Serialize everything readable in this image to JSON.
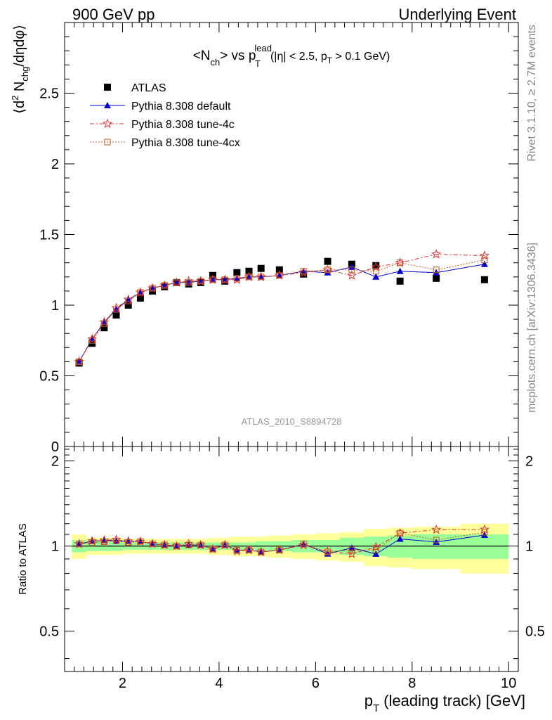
{
  "header": {
    "left": "900 GeV pp",
    "right": "Underlying Event"
  },
  "side_text": {
    "rivet": "Rivet 3.1.10, ≥ 2.7M events",
    "mcplots": "mcplots.cern.ch [arXiv:1306.3436]"
  },
  "watermark": "ATLAS_2010_S8894728",
  "chart_data": [
    {
      "type": "scatter",
      "title": "<Nch> vs pT lead (|η| < 2.5, pT > 0.1 GeV)",
      "ylabel": "⟨d² Nchg/dηdφ⟩",
      "xlim": [
        0.8,
        10.2
      ],
      "ylim": [
        0,
        3.0
      ],
      "yticks": [
        "0",
        "0.5",
        "1",
        "1.5",
        "2",
        "2.5"
      ],
      "legend_position": "top-left",
      "x": [
        1.1,
        1.37,
        1.62,
        1.87,
        2.12,
        2.37,
        2.62,
        2.87,
        3.12,
        3.37,
        3.62,
        3.87,
        4.12,
        4.37,
        4.62,
        4.87,
        5.25,
        5.75,
        6.25,
        6.75,
        7.25,
        7.75,
        8.5,
        9.5
      ],
      "series": [
        {
          "name": "ATLAS",
          "color": "#000000",
          "marker": "square",
          "values": [
            0.59,
            0.73,
            0.84,
            0.93,
            1.0,
            1.05,
            1.1,
            1.13,
            1.16,
            1.15,
            1.16,
            1.21,
            1.17,
            1.23,
            1.24,
            1.26,
            1.25,
            1.22,
            1.31,
            1.29,
            1.28,
            1.17,
            1.19,
            1.18
          ]
        },
        {
          "name": "Pythia 8.308 default",
          "color": "#0000cc",
          "marker": "triangle",
          "values": [
            0.6,
            0.76,
            0.88,
            0.97,
            1.04,
            1.09,
            1.12,
            1.14,
            1.16,
            1.16,
            1.17,
            1.18,
            1.18,
            1.19,
            1.2,
            1.2,
            1.21,
            1.24,
            1.23,
            1.27,
            1.2,
            1.24,
            1.23,
            1.29
          ]
        },
        {
          "name": "Pythia 8.308 tune-4c",
          "color": "#e03030",
          "marker": "star",
          "values": [
            0.6,
            0.76,
            0.88,
            0.98,
            1.04,
            1.09,
            1.12,
            1.14,
            1.16,
            1.17,
            1.17,
            1.18,
            1.18,
            1.18,
            1.2,
            1.2,
            1.21,
            1.23,
            1.25,
            1.21,
            1.27,
            1.3,
            1.36,
            1.35
          ]
        },
        {
          "name": "Pythia 8.308 tune-4cx",
          "color": "#c85a1e",
          "marker": "open-square",
          "values": [
            0.6,
            0.75,
            0.87,
            0.97,
            1.03,
            1.09,
            1.12,
            1.14,
            1.16,
            1.16,
            1.17,
            1.18,
            1.18,
            1.19,
            1.2,
            1.2,
            1.21,
            1.24,
            1.25,
            1.25,
            1.24,
            1.3,
            1.25,
            1.32
          ]
        }
      ]
    },
    {
      "type": "scatter",
      "xlabel": "pT (leading track) [GeV]",
      "ylabel": "Ratio to ATLAS",
      "xlim": [
        0.8,
        10.2
      ],
      "ylim": [
        0.36,
        2.25
      ],
      "yticks": [
        "0.5",
        "1",
        "2"
      ],
      "xticks": [
        "2",
        "4",
        "6",
        "8",
        "10"
      ],
      "uncertainty_bands": {
        "x_edges": [
          0.95,
          1.25,
          1.5,
          1.75,
          2.0,
          2.25,
          2.5,
          2.75,
          3.0,
          3.25,
          3.5,
          3.75,
          4.0,
          4.25,
          4.5,
          4.75,
          5.0,
          5.5,
          6.0,
          6.5,
          7.0,
          7.5,
          8.0,
          9.0,
          10.0
        ],
        "stat_half_width": [
          0.05,
          0.04,
          0.04,
          0.04,
          0.03,
          0.03,
          0.03,
          0.03,
          0.03,
          0.03,
          0.03,
          0.03,
          0.03,
          0.03,
          0.03,
          0.04,
          0.04,
          0.05,
          0.05,
          0.07,
          0.08,
          0.09,
          0.1,
          0.1
        ],
        "total_half_width": [
          0.1,
          0.07,
          0.07,
          0.07,
          0.06,
          0.06,
          0.06,
          0.06,
          0.06,
          0.06,
          0.06,
          0.07,
          0.07,
          0.08,
          0.08,
          0.08,
          0.09,
          0.1,
          0.11,
          0.12,
          0.15,
          0.16,
          0.17,
          0.2
        ],
        "stat_color": "#99ff99",
        "total_color": "#ffff99"
      }
    }
  ]
}
